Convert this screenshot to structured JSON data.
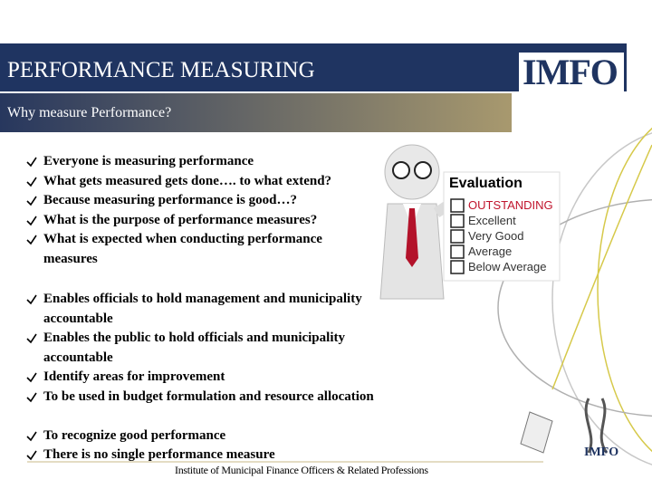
{
  "header": {
    "title": "PERFORMANCE MEASURING",
    "logo": "IMFO"
  },
  "subtitle": "Why measure Performance?",
  "bullets_1": [
    "Everyone is measuring performance",
    "What gets measured gets done…. to what extend?",
    "Because measuring performance is good…?",
    "What is the purpose of performance measures?",
    "What is expected when conducting performance measures"
  ],
  "bullets_2": [
    "Enables officials to hold management and municipality accountable",
    "Enables the public to hold officials and municipality accountable",
    "Identify areas for improvement",
    "To be used in budget formulation and resource allocation",
    "To recognize good performance",
    "There is no single performance measure"
  ],
  "evaluation": {
    "title": "Evaluation",
    "options": [
      "OUTSTANDING",
      "Excellent",
      "Very Good",
      "Average",
      "Below Average"
    ]
  },
  "footer_logo": "IMFO",
  "footer": "Institute of Municipal Finance Officers & Related Professions"
}
